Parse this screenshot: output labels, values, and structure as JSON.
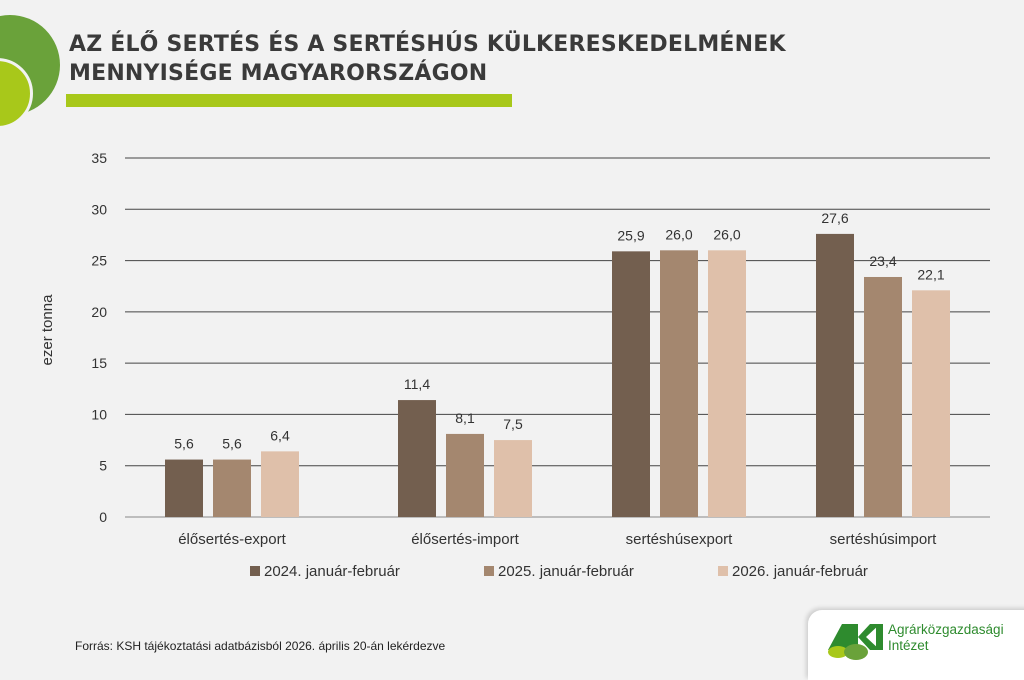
{
  "header": {
    "title_line1": "AZ ÉLŐ SERTÉS ÉS A SERTÉSHÚS KÜLKERESKEDELMÉNEK",
    "title_line2": "MENNYISÉGE MAGYARORSZÁGON"
  },
  "chart_data": {
    "type": "bar",
    "title": "",
    "ylabel": "ezer tonna",
    "xlabel": "",
    "ylim": [
      0,
      35
    ],
    "yticks": [
      0,
      5,
      10,
      15,
      20,
      25,
      30,
      35
    ],
    "grid": true,
    "legend_position": "bottom",
    "categories": [
      "élősertés-export",
      "élősertés-import",
      "sertéshúsexport",
      "sertéshúsimport"
    ],
    "series": [
      {
        "name": "2024. január-február",
        "color": "#735f4f",
        "values": [
          5.6,
          11.4,
          25.9,
          27.6
        ],
        "labels": [
          "5,6",
          "11,4",
          "25,9",
          "27,6"
        ]
      },
      {
        "name": "2025. január-február",
        "color": "#a4876f",
        "values": [
          5.6,
          8.1,
          26.0,
          23.4
        ],
        "labels": [
          "5,6",
          "8,1",
          "26,0",
          "23,4"
        ]
      },
      {
        "name": "2026. január-február",
        "color": "#dfc0aa",
        "values": [
          6.4,
          7.5,
          26.0,
          22.1
        ],
        "labels": [
          "6,4",
          "7,5",
          "26,0",
          "22,1"
        ]
      }
    ]
  },
  "footer": {
    "source": "Forrás: KSH tájékoztatási adatbázisból 2026. április 20-án lekérdezve"
  },
  "logo": {
    "mark": "AKI",
    "line1": "Agrárközgazdasági",
    "line2": "Intézet"
  }
}
